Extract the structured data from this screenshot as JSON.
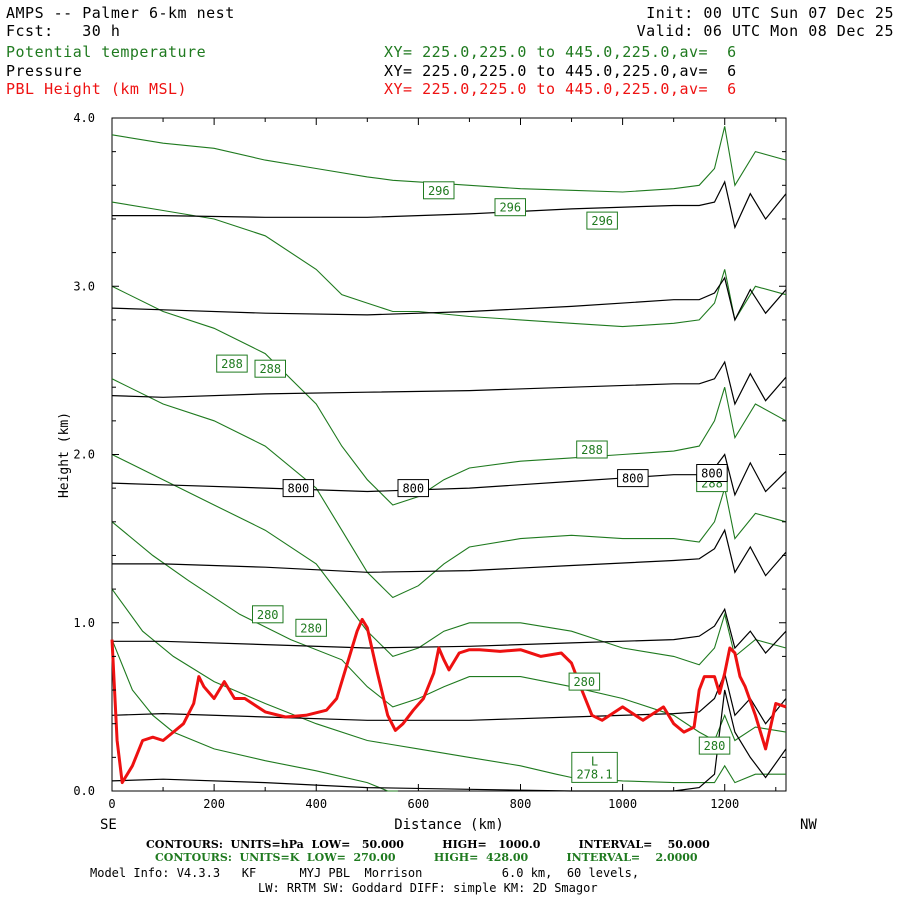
{
  "header": {
    "title": "AMPS -- Palmer 6-km nest",
    "init": "Init: 00 UTC Sun 07 Dec 25",
    "fcst": "Fcst:   30 h",
    "valid": "Valid: 06 UTC Mon 08 Dec 25",
    "rows": [
      {
        "field": "Potential temperature",
        "xy": "XY= 225.0,225.0 to 445.0,225.0,av=  6",
        "color": "#1f7a1f"
      },
      {
        "field": "Pressure",
        "xy": "XY= 225.0,225.0 to 445.0,225.0,av=  6",
        "color": "#000000"
      },
      {
        "field": "PBL Height (km MSL)",
        "xy": "XY= 225.0,225.0 to 445.0,225.0,av=  6",
        "color": "#ee1111"
      }
    ]
  },
  "axes": {
    "xlabel": "Distance (km)",
    "ylabel": "Height (km)",
    "left_end": "SE",
    "right_end": "NW",
    "x_ticks": [
      "0",
      "200",
      "400",
      "600",
      "800",
      "1000",
      "1200"
    ],
    "y_ticks": [
      "0.0",
      "1.0",
      "2.0",
      "3.0",
      "4.0"
    ]
  },
  "footer": {
    "line1": "CONTOURS:  UNITS=hPa  LOW=   50.000          HIGH=   1000.0          INTERVAL=    50.000",
    "line2": "CONTOURS:  UNITS=K  LOW=  270.00          HIGH=  428.00          INTERVAL=    2.0000",
    "line3": "Model Info: V4.3.3   KF      MYJ PBL  Morrison           6.0 km,  60 levels,",
    "line4": "LW: RRTM SW: Goddard DIFF: simple KM: 2D Smagor"
  },
  "colors": {
    "theta": "#1f7a1f",
    "pressure": "#000000",
    "pbl": "#ee1111"
  },
  "chart_data": {
    "type": "line",
    "title": "",
    "xlabel": "Distance (km)",
    "ylabel": "Height (km)",
    "xlim": [
      0,
      1320
    ],
    "ylim": [
      0,
      4.0
    ],
    "grid": false,
    "contour_labels": {
      "theta": [
        {
          "text": "296",
          "x": 640,
          "y": 3.57
        },
        {
          "text": "296",
          "x": 780,
          "y": 3.47
        },
        {
          "text": "296",
          "x": 960,
          "y": 3.39
        },
        {
          "text": "288",
          "x": 235,
          "y": 2.54
        },
        {
          "text": "288",
          "x": 310,
          "y": 2.51
        },
        {
          "text": "288",
          "x": 940,
          "y": 2.03
        },
        {
          "text": "288",
          "x": 1175,
          "y": 1.83
        },
        {
          "text": "280",
          "x": 305,
          "y": 1.05
        },
        {
          "text": "280",
          "x": 390,
          "y": 0.97
        },
        {
          "text": "280",
          "x": 925,
          "y": 0.65
        },
        {
          "text": "280",
          "x": 1180,
          "y": 0.27
        },
        {
          "text": "L\n278.1",
          "x": 945,
          "y": 0.14
        }
      ],
      "pressure": [
        {
          "text": "800",
          "x": 365,
          "y": 1.8
        },
        {
          "text": "800",
          "x": 590,
          "y": 1.8
        },
        {
          "text": "800",
          "x": 1020,
          "y": 1.86
        },
        {
          "text": "800",
          "x": 1175,
          "y": 1.89
        }
      ]
    },
    "pressure_lines": [
      {
        "x": [
          0,
          100,
          300,
          500,
          700,
          900,
          1100,
          1150,
          1180,
          1200,
          1220,
          1250,
          1280,
          1320
        ],
        "y": [
          0.06,
          0.07,
          0.05,
          0.02,
          0.01,
          0.0,
          0.0,
          0.02,
          0.1,
          0.6,
          0.35,
          0.2,
          0.08,
          0.25
        ]
      },
      {
        "x": [
          0,
          100,
          300,
          500,
          700,
          900,
          1100,
          1150,
          1180,
          1200,
          1220,
          1250,
          1280,
          1320
        ],
        "y": [
          0.45,
          0.46,
          0.44,
          0.42,
          0.42,
          0.44,
          0.46,
          0.47,
          0.55,
          0.7,
          0.45,
          0.55,
          0.4,
          0.55
        ]
      },
      {
        "x": [
          0,
          100,
          300,
          500,
          700,
          900,
          1100,
          1150,
          1180,
          1200,
          1220,
          1250,
          1280,
          1320
        ],
        "y": [
          0.89,
          0.89,
          0.87,
          0.85,
          0.86,
          0.88,
          0.9,
          0.92,
          0.98,
          1.08,
          0.85,
          0.95,
          0.82,
          0.95
        ]
      },
      {
        "x": [
          0,
          100,
          300,
          500,
          700,
          900,
          1100,
          1150,
          1180,
          1200,
          1220,
          1250,
          1280,
          1320
        ],
        "y": [
          1.35,
          1.35,
          1.33,
          1.3,
          1.31,
          1.34,
          1.37,
          1.38,
          1.44,
          1.55,
          1.3,
          1.45,
          1.28,
          1.42
        ]
      },
      {
        "x": [
          0,
          100,
          300,
          500,
          700,
          900,
          1100,
          1150,
          1180,
          1200,
          1220,
          1250,
          1280,
          1320
        ],
        "y": [
          1.83,
          1.82,
          1.8,
          1.78,
          1.8,
          1.84,
          1.88,
          1.88,
          1.92,
          2.0,
          1.76,
          1.95,
          1.78,
          1.9
        ]
      },
      {
        "x": [
          0,
          100,
          300,
          500,
          700,
          900,
          1100,
          1150,
          1180,
          1200,
          1220,
          1250,
          1280,
          1320
        ],
        "y": [
          2.35,
          2.34,
          2.36,
          2.37,
          2.38,
          2.4,
          2.42,
          2.42,
          2.45,
          2.55,
          2.3,
          2.48,
          2.32,
          2.46
        ]
      },
      {
        "x": [
          0,
          100,
          300,
          500,
          700,
          900,
          1100,
          1150,
          1180,
          1200,
          1220,
          1250,
          1280,
          1320
        ],
        "y": [
          2.87,
          2.86,
          2.84,
          2.83,
          2.85,
          2.88,
          2.92,
          2.92,
          2.96,
          3.05,
          2.8,
          2.98,
          2.84,
          2.98
        ]
      },
      {
        "x": [
          0,
          100,
          300,
          500,
          700,
          900,
          1100,
          1150,
          1180,
          1200,
          1220,
          1250,
          1280,
          1320
        ],
        "y": [
          3.42,
          3.42,
          3.41,
          3.41,
          3.43,
          3.46,
          3.48,
          3.48,
          3.5,
          3.62,
          3.35,
          3.55,
          3.4,
          3.55
        ]
      }
    ],
    "theta_lines": [
      {
        "x": [
          0,
          100,
          200,
          300,
          400,
          500,
          550,
          600,
          700,
          800,
          900,
          1000,
          1100,
          1150,
          1180,
          1200,
          1220,
          1260,
          1320
        ],
        "y": [
          3.9,
          3.85,
          3.82,
          3.75,
          3.7,
          3.65,
          3.63,
          3.62,
          3.6,
          3.58,
          3.57,
          3.56,
          3.58,
          3.6,
          3.7,
          3.95,
          3.6,
          3.8,
          3.75
        ]
      },
      {
        "x": [
          0,
          100,
          200,
          300,
          400,
          450,
          500,
          550,
          600,
          700,
          800,
          900,
          1000,
          1100,
          1150,
          1180,
          1200,
          1220,
          1260,
          1320
        ],
        "y": [
          3.5,
          3.45,
          3.4,
          3.3,
          3.1,
          2.95,
          2.9,
          2.85,
          2.85,
          2.82,
          2.8,
          2.78,
          2.76,
          2.78,
          2.8,
          2.9,
          3.1,
          2.8,
          3.0,
          2.95
        ]
      },
      {
        "x": [
          0,
          100,
          200,
          300,
          400,
          450,
          500,
          550,
          600,
          650,
          700,
          800,
          900,
          1000,
          1100,
          1150,
          1180,
          1200,
          1220,
          1260,
          1320
        ],
        "y": [
          3.0,
          2.85,
          2.75,
          2.6,
          2.3,
          2.05,
          1.85,
          1.7,
          1.75,
          1.85,
          1.92,
          1.96,
          1.98,
          2.0,
          2.02,
          2.05,
          2.2,
          2.4,
          2.1,
          2.3,
          2.2
        ]
      },
      {
        "x": [
          0,
          100,
          200,
          300,
          400,
          450,
          500,
          550,
          600,
          650,
          700,
          800,
          900,
          1000,
          1100,
          1150,
          1180,
          1200,
          1220,
          1260,
          1320
        ],
        "y": [
          2.45,
          2.3,
          2.2,
          2.05,
          1.8,
          1.55,
          1.3,
          1.15,
          1.22,
          1.35,
          1.45,
          1.5,
          1.52,
          1.5,
          1.5,
          1.48,
          1.6,
          1.8,
          1.5,
          1.65,
          1.6
        ]
      },
      {
        "x": [
          0,
          100,
          200,
          300,
          400,
          450,
          500,
          550,
          600,
          650,
          700,
          800,
          900,
          1000,
          1100,
          1150,
          1180,
          1200,
          1220,
          1260,
          1320
        ],
        "y": [
          2.0,
          1.85,
          1.7,
          1.55,
          1.35,
          1.15,
          0.95,
          0.8,
          0.85,
          0.95,
          1.0,
          1.0,
          0.95,
          0.85,
          0.8,
          0.75,
          0.85,
          1.05,
          0.8,
          0.9,
          0.85
        ]
      },
      {
        "x": [
          0,
          80,
          150,
          250,
          350,
          450,
          500,
          550,
          600,
          650,
          700,
          800,
          900,
          1000,
          1100,
          1150,
          1180,
          1200,
          1220,
          1260,
          1320
        ],
        "y": [
          1.6,
          1.4,
          1.25,
          1.05,
          0.9,
          0.78,
          0.62,
          0.5,
          0.55,
          0.62,
          0.68,
          0.68,
          0.62,
          0.55,
          0.45,
          0.35,
          0.3,
          0.45,
          0.3,
          0.38,
          0.35
        ]
      },
      {
        "x": [
          0,
          60,
          120,
          200,
          300,
          400,
          500,
          600,
          700,
          800,
          870,
          900,
          1000,
          1100,
          1150,
          1180,
          1200,
          1220,
          1260,
          1320
        ],
        "y": [
          1.2,
          0.95,
          0.8,
          0.65,
          0.52,
          0.4,
          0.3,
          0.25,
          0.2,
          0.15,
          0.1,
          0.08,
          0.06,
          0.05,
          0.05,
          0.05,
          0.15,
          0.05,
          0.1,
          0.1
        ]
      },
      {
        "x": [
          0,
          40,
          80,
          120,
          200,
          300,
          400,
          500,
          540,
          560
        ],
        "y": [
          0.9,
          0.6,
          0.45,
          0.35,
          0.25,
          0.18,
          0.12,
          0.05,
          0.0,
          0.0
        ]
      }
    ],
    "pbl_height": {
      "x": [
        0,
        10,
        20,
        40,
        60,
        80,
        100,
        120,
        140,
        160,
        170,
        180,
        200,
        220,
        240,
        260,
        300,
        340,
        380,
        420,
        440,
        460,
        480,
        490,
        500,
        520,
        540,
        555,
        570,
        590,
        610,
        630,
        640,
        650,
        660,
        680,
        700,
        720,
        760,
        800,
        840,
        880,
        900,
        920,
        940,
        960,
        1000,
        1040,
        1080,
        1100,
        1120,
        1140,
        1150,
        1160,
        1180,
        1190,
        1200,
        1210,
        1220,
        1230,
        1240,
        1260,
        1280,
        1300,
        1320
      ],
      "y": [
        0.9,
        0.3,
        0.05,
        0.15,
        0.3,
        0.32,
        0.3,
        0.35,
        0.4,
        0.52,
        0.68,
        0.62,
        0.55,
        0.65,
        0.55,
        0.55,
        0.47,
        0.44,
        0.45,
        0.48,
        0.55,
        0.75,
        0.95,
        1.02,
        0.97,
        0.7,
        0.45,
        0.36,
        0.4,
        0.48,
        0.55,
        0.7,
        0.85,
        0.78,
        0.72,
        0.82,
        0.84,
        0.84,
        0.83,
        0.84,
        0.8,
        0.82,
        0.76,
        0.6,
        0.45,
        0.42,
        0.5,
        0.42,
        0.5,
        0.4,
        0.35,
        0.38,
        0.6,
        0.68,
        0.68,
        0.58,
        0.7,
        0.85,
        0.82,
        0.68,
        0.62,
        0.45,
        0.25,
        0.52,
        0.5
      ]
    }
  }
}
